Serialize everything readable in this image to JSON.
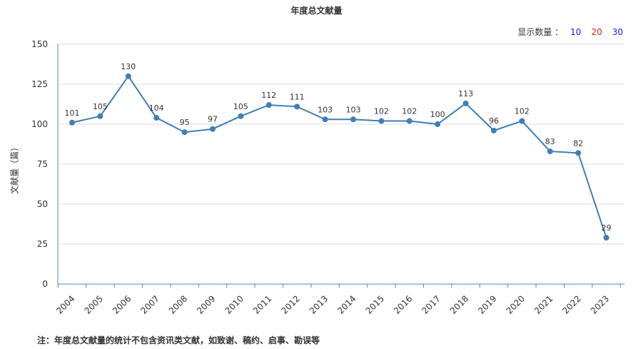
{
  "title": "年度总文献量",
  "show_count": {
    "label": "显示数量 ：",
    "options": [
      "10",
      "20",
      "30"
    ]
  },
  "footnote": "注：年度总文献量的统计不包含资讯类文献，如致谢、稿约、启事、勘误等",
  "colors": {
    "line": "#3f7fb5",
    "axis": "#3f8fc0",
    "grid": "#dddddd"
  },
  "chart_data": {
    "type": "line",
    "ylabel": "文献量（篇）",
    "ylim": [
      0,
      150
    ],
    "yticks": [
      0,
      25,
      50,
      75,
      100,
      125,
      150
    ],
    "grid": true,
    "categories": [
      "2004",
      "2005",
      "2006",
      "2007",
      "2008",
      "2009",
      "2010",
      "2011",
      "2012",
      "2013",
      "2014",
      "2015",
      "2016",
      "2017",
      "2018",
      "2019",
      "2020",
      "2021",
      "2022",
      "2023"
    ],
    "series": [
      {
        "values": [
          101,
          105,
          130,
          104,
          95,
          97,
          105,
          112,
          111,
          103,
          103,
          102,
          102,
          100,
          113,
          96,
          102,
          83,
          82,
          29
        ]
      }
    ]
  }
}
